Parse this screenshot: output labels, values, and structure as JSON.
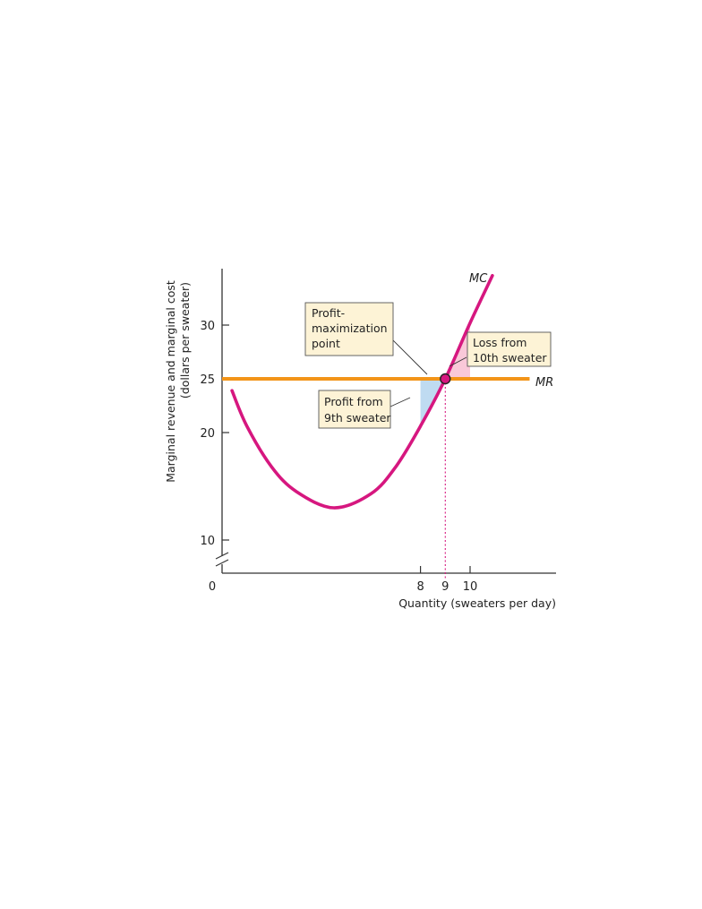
{
  "chart_data": {
    "type": "line",
    "xlabel": "Quantity (sweaters per day)",
    "ylabel_lines": [
      "Marginal revenue and marginal cost",
      "(dollars per sweater)"
    ],
    "origin_label": "0",
    "x_ticks": [
      8,
      9,
      10
    ],
    "y_ticks": [
      10,
      20,
      25,
      30
    ],
    "highlight_x_tick": 9,
    "highlight_y_tick": 25,
    "xlim": [
      0,
      13
    ],
    "ylim": [
      8,
      35
    ],
    "y_axis_break": true,
    "series": [
      {
        "name": "MC",
        "color": "#d6177f",
        "x": [
          0.4,
          1,
          2,
          3,
          4.5,
          6,
          7,
          8,
          9,
          10,
          10.9
        ],
        "y": [
          23.9,
          20.6,
          16.8,
          14.5,
          13.0,
          14.3,
          16.8,
          20.6,
          25.0,
          30.2,
          34.6
        ]
      },
      {
        "name": "MR",
        "color": "#f39418",
        "x": [
          0,
          12.4
        ],
        "y": [
          25,
          25
        ]
      }
    ],
    "shaded_regions": [
      {
        "color": "#bfdbf1",
        "x_from": 8,
        "x_to": 9
      },
      {
        "color": "#f9c8d8",
        "x_from": 9,
        "x_to": 10
      }
    ],
    "point": {
      "x": 9,
      "y": 25
    },
    "annotations": [
      {
        "lines": [
          "Profit-",
          "maximization",
          "point"
        ]
      },
      {
        "lines": [
          "Loss from",
          "10th sweater"
        ]
      },
      {
        "lines": [
          "Profit from",
          "9th sweater"
        ]
      }
    ]
  },
  "colors": {
    "mc": "#d6177f",
    "mr": "#f39418",
    "profit_fill": "#bfdbf1",
    "loss_fill": "#f9c8d8",
    "annotation_fill": "#fdf3d6",
    "axis": "#333333"
  }
}
